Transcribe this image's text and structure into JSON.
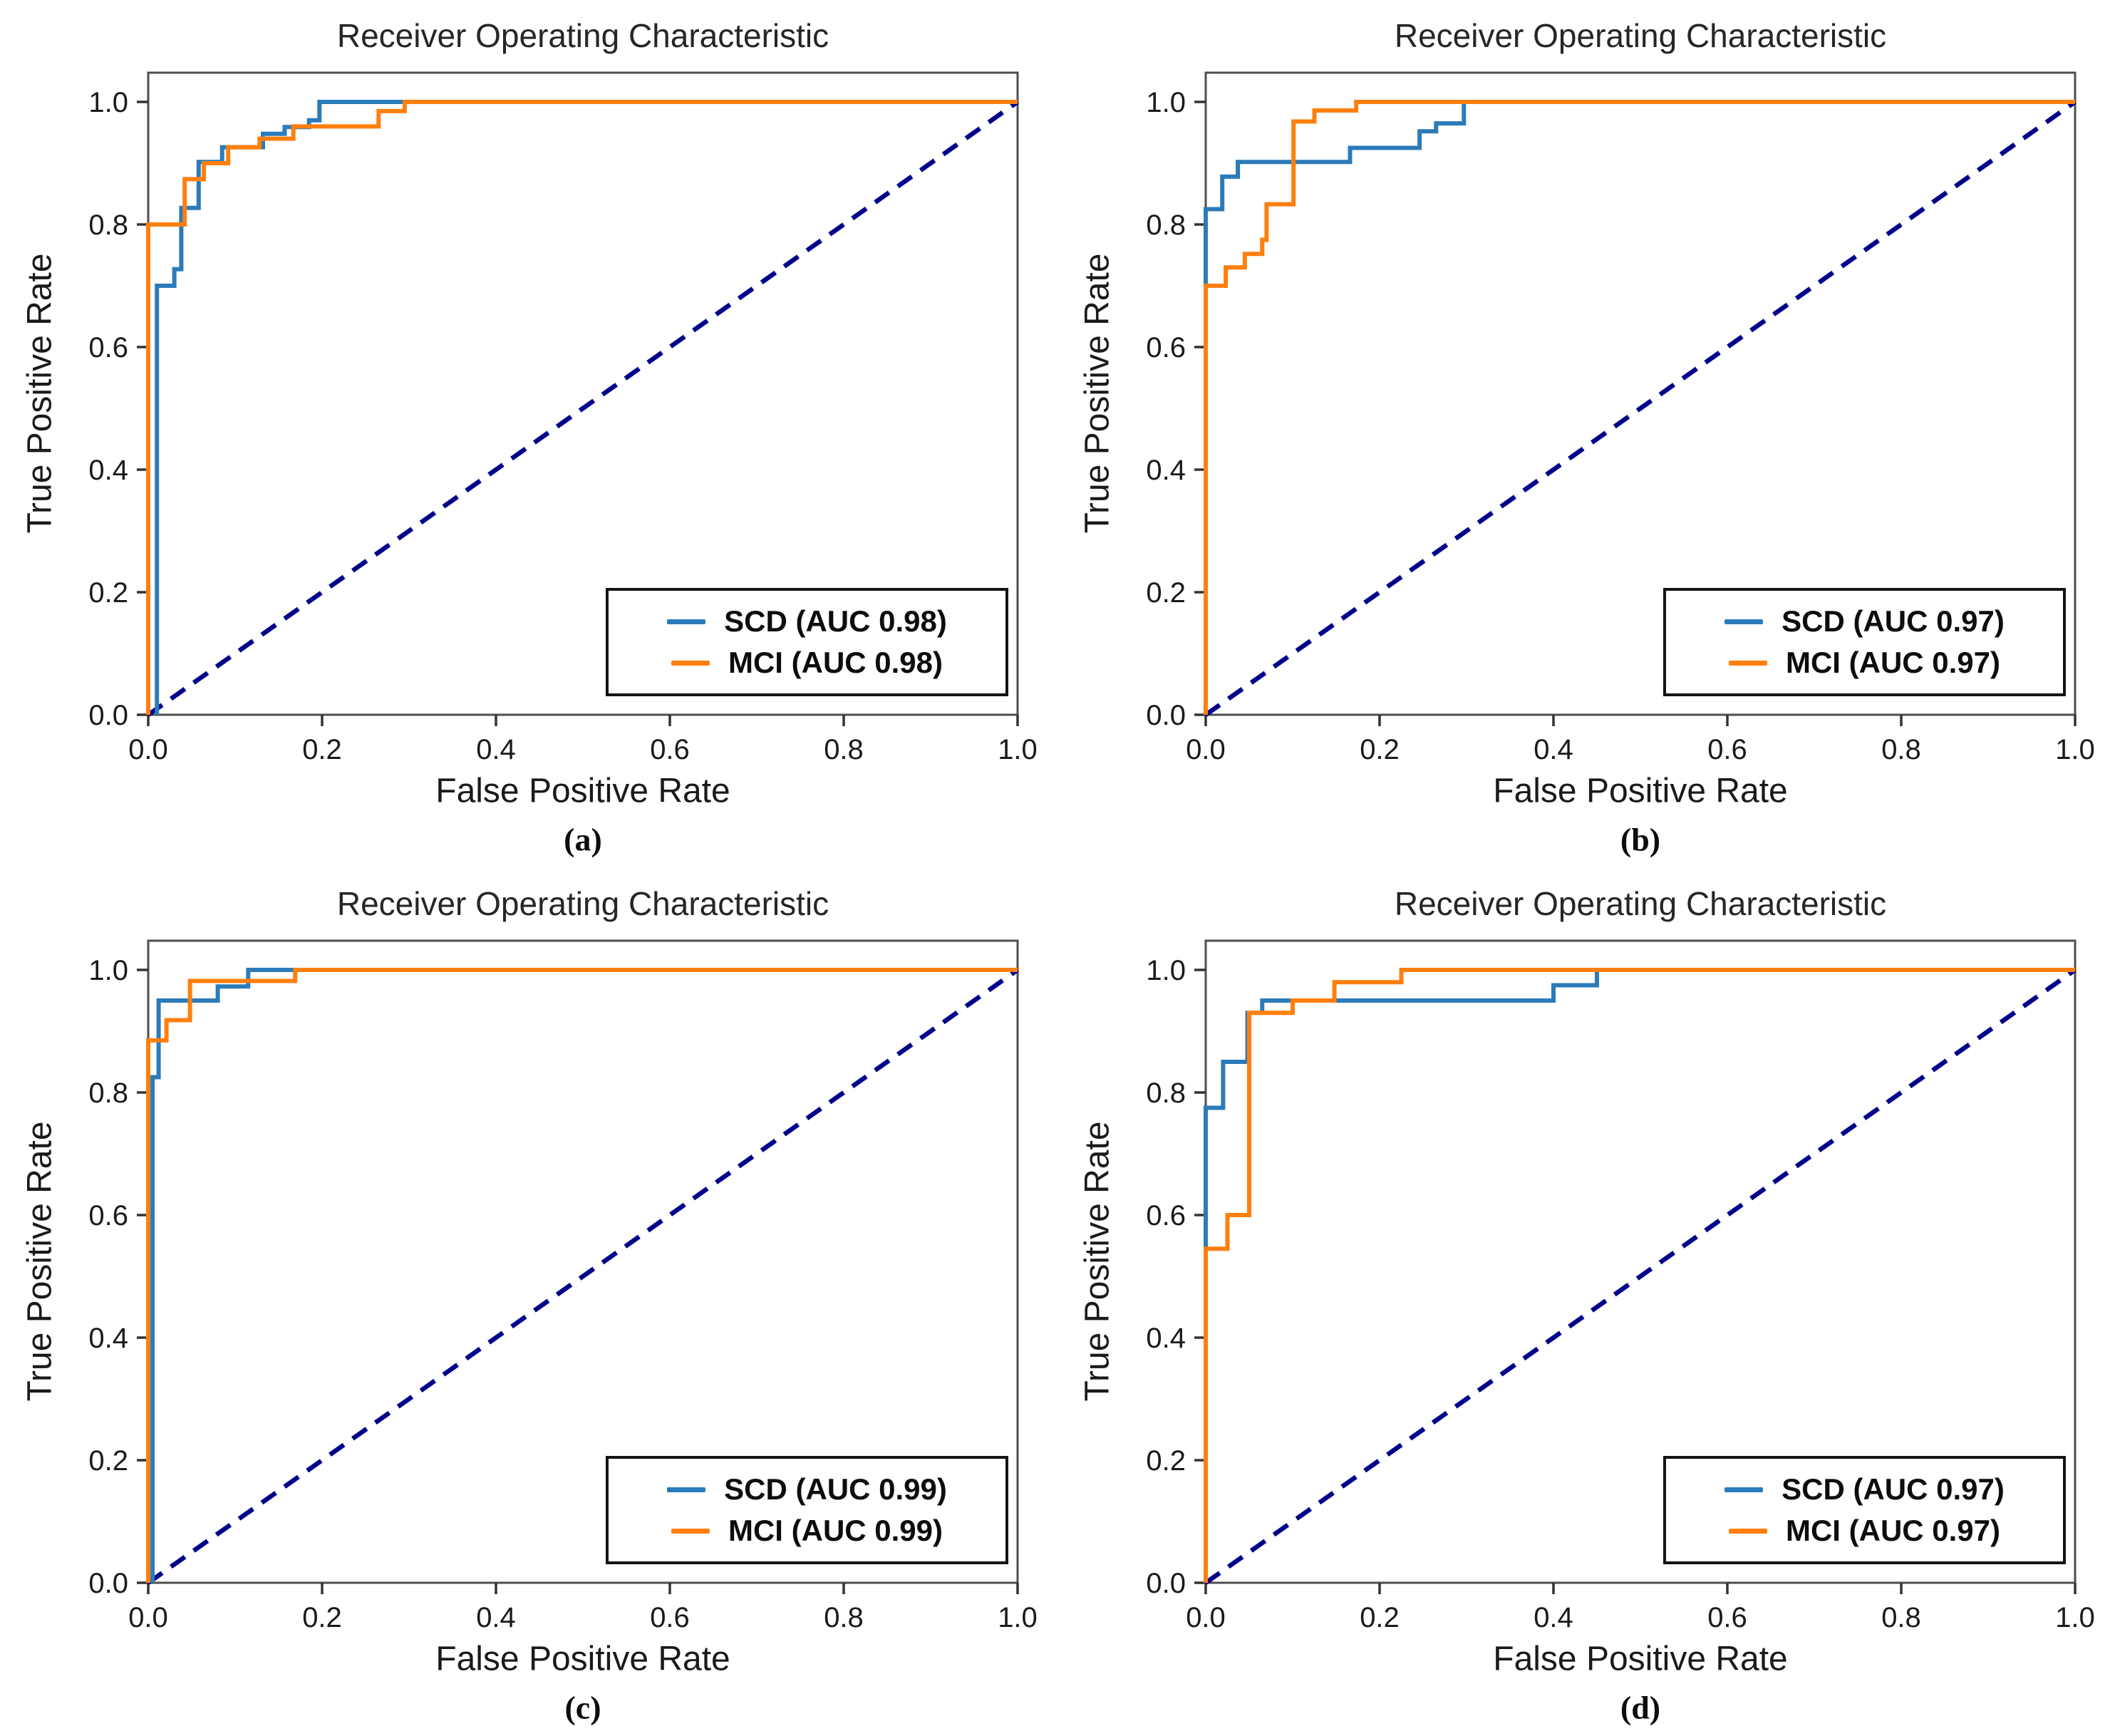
{
  "figure": {
    "layout": {
      "rows": 2,
      "cols": 2
    },
    "background": "#ffffff",
    "colors": {
      "scd_line": "#2b7bba",
      "mci_line": "#ff7f0e",
      "chance_diagonal": "#00008b",
      "spine": "#4d4d4d",
      "text": "#1a1a1a"
    }
  },
  "chart_data": [
    {
      "id": "a",
      "type": "line",
      "caption": "(a)",
      "title": "Receiver Operating Characteristic",
      "xlabel": "False Positive Rate",
      "ylabel": "True Positive Rate",
      "xlim": [
        0.0,
        1.0
      ],
      "ylim": [
        0.0,
        1.05
      ],
      "xticks": [
        0.0,
        0.2,
        0.4,
        0.6,
        0.8,
        1.0
      ],
      "yticks": [
        0.0,
        0.2,
        0.4,
        0.6,
        0.8,
        1.0
      ],
      "grid": false,
      "legend_position": "lower right",
      "reference_diagonal": {
        "style": "dashed",
        "color": "#00008b",
        "from": [
          0,
          0
        ],
        "to": [
          1,
          1
        ]
      },
      "series": [
        {
          "name": "SCD (AUC 0.98)",
          "label": "SCD",
          "auc": 0.98,
          "color": "#2b7bba",
          "points": [
            [
              0.01,
              0
            ],
            [
              0.01,
              0.7
            ],
            [
              0.03,
              0.7
            ],
            [
              0.03,
              0.727
            ],
            [
              0.038,
              0.727
            ],
            [
              0.038,
              0.827
            ],
            [
              0.058,
              0.827
            ],
            [
              0.058,
              0.902
            ],
            [
              0.085,
              0.902
            ],
            [
              0.085,
              0.926
            ],
            [
              0.132,
              0.926
            ],
            [
              0.132,
              0.948
            ],
            [
              0.157,
              0.948
            ],
            [
              0.157,
              0.959
            ],
            [
              0.185,
              0.959
            ],
            [
              0.185,
              0.97
            ],
            [
              0.197,
              0.97
            ],
            [
              0.197,
              1.0
            ],
            [
              1.0,
              1.0
            ]
          ]
        },
        {
          "name": "MCI (AUC 0.98)",
          "label": "MCI",
          "auc": 0.98,
          "color": "#ff7f0e",
          "points": [
            [
              0,
              0
            ],
            [
              0,
              0.8
            ],
            [
              0.042,
              0.8
            ],
            [
              0.042,
              0.874
            ],
            [
              0.064,
              0.874
            ],
            [
              0.064,
              0.9
            ],
            [
              0.092,
              0.9
            ],
            [
              0.092,
              0.926
            ],
            [
              0.128,
              0.926
            ],
            [
              0.128,
              0.94
            ],
            [
              0.167,
              0.94
            ],
            [
              0.167,
              0.96
            ],
            [
              0.265,
              0.96
            ],
            [
              0.265,
              0.985
            ],
            [
              0.295,
              0.985
            ],
            [
              0.295,
              1.0
            ],
            [
              1.0,
              1.0
            ]
          ]
        }
      ]
    },
    {
      "id": "b",
      "type": "line",
      "caption": "(b)",
      "title": "Receiver Operating Characteristic",
      "xlabel": "False Positive Rate",
      "ylabel": "True Positive Rate",
      "xlim": [
        0.0,
        1.0
      ],
      "ylim": [
        0.0,
        1.05
      ],
      "xticks": [
        0.0,
        0.2,
        0.4,
        0.6,
        0.8,
        1.0
      ],
      "yticks": [
        0.0,
        0.2,
        0.4,
        0.6,
        0.8,
        1.0
      ],
      "grid": false,
      "legend_position": "lower right",
      "reference_diagonal": {
        "style": "dashed",
        "color": "#00008b",
        "from": [
          0,
          0
        ],
        "to": [
          1,
          1
        ]
      },
      "series": [
        {
          "name": "SCD (AUC 0.97)",
          "label": "SCD",
          "auc": 0.97,
          "color": "#2b7bba",
          "points": [
            [
              0,
              0
            ],
            [
              0,
              0.825
            ],
            [
              0.019,
              0.825
            ],
            [
              0.019,
              0.878
            ],
            [
              0.037,
              0.878
            ],
            [
              0.037,
              0.902
            ],
            [
              0.166,
              0.902
            ],
            [
              0.166,
              0.925
            ],
            [
              0.246,
              0.925
            ],
            [
              0.246,
              0.952
            ],
            [
              0.265,
              0.952
            ],
            [
              0.265,
              0.965
            ],
            [
              0.297,
              0.965
            ],
            [
              0.297,
              1.0
            ],
            [
              1.0,
              1.0
            ]
          ]
        },
        {
          "name": "MCI (AUC 0.97)",
          "label": "MCI",
          "auc": 0.97,
          "color": "#ff7f0e",
          "points": [
            [
              0,
              0
            ],
            [
              0,
              0.7
            ],
            [
              0.023,
              0.7
            ],
            [
              0.023,
              0.73
            ],
            [
              0.045,
              0.73
            ],
            [
              0.045,
              0.752
            ],
            [
              0.065,
              0.752
            ],
            [
              0.065,
              0.775
            ],
            [
              0.07,
              0.775
            ],
            [
              0.07,
              0.833
            ],
            [
              0.101,
              0.833
            ],
            [
              0.101,
              0.968
            ],
            [
              0.125,
              0.968
            ],
            [
              0.125,
              0.986
            ],
            [
              0.173,
              0.986
            ],
            [
              0.173,
              1.0
            ],
            [
              1.0,
              1.0
            ]
          ]
        }
      ]
    },
    {
      "id": "c",
      "type": "line",
      "caption": "(c)",
      "title": "Receiver Operating Characteristic",
      "xlabel": "False Positive Rate",
      "ylabel": "True Positive Rate",
      "xlim": [
        0.0,
        1.0
      ],
      "ylim": [
        0.0,
        1.05
      ],
      "xticks": [
        0.0,
        0.2,
        0.4,
        0.6,
        0.8,
        1.0
      ],
      "yticks": [
        0.0,
        0.2,
        0.4,
        0.6,
        0.8,
        1.0
      ],
      "grid": false,
      "legend_position": "lower right",
      "reference_diagonal": {
        "style": "dashed",
        "color": "#00008b",
        "from": [
          0,
          0
        ],
        "to": [
          1,
          1
        ]
      },
      "series": [
        {
          "name": "SCD (AUC 0.99)",
          "label": "SCD",
          "auc": 0.99,
          "color": "#2b7bba",
          "points": [
            [
              0.005,
              0
            ],
            [
              0.005,
              0.825
            ],
            [
              0.012,
              0.825
            ],
            [
              0.012,
              0.95
            ],
            [
              0.08,
              0.95
            ],
            [
              0.08,
              0.973
            ],
            [
              0.115,
              0.973
            ],
            [
              0.115,
              1.0
            ],
            [
              1.0,
              1.0
            ]
          ]
        },
        {
          "name": "MCI (AUC 0.99)",
          "label": "MCI",
          "auc": 0.99,
          "color": "#ff7f0e",
          "points": [
            [
              0,
              0
            ],
            [
              0,
              0.885
            ],
            [
              0.021,
              0.885
            ],
            [
              0.021,
              0.918
            ],
            [
              0.048,
              0.918
            ],
            [
              0.048,
              0.982
            ],
            [
              0.169,
              0.982
            ],
            [
              0.169,
              1.0
            ],
            [
              1.0,
              1.0
            ]
          ]
        }
      ]
    },
    {
      "id": "d",
      "type": "line",
      "caption": "(d)",
      "title": "Receiver Operating Characteristic",
      "xlabel": "False Positive Rate",
      "ylabel": "True Positive Rate",
      "xlim": [
        0.0,
        1.0
      ],
      "ylim": [
        0.0,
        1.05
      ],
      "xticks": [
        0.0,
        0.2,
        0.4,
        0.6,
        0.8,
        1.0
      ],
      "yticks": [
        0.0,
        0.2,
        0.4,
        0.6,
        0.8,
        1.0
      ],
      "grid": false,
      "legend_position": "lower right",
      "reference_diagonal": {
        "style": "dashed",
        "color": "#00008b",
        "from": [
          0,
          0
        ],
        "to": [
          1,
          1
        ]
      },
      "series": [
        {
          "name": "SCD (AUC 0.97)",
          "label": "SCD",
          "auc": 0.97,
          "color": "#2b7bba",
          "points": [
            [
              0,
              0
            ],
            [
              0,
              0.775
            ],
            [
              0.02,
              0.775
            ],
            [
              0.02,
              0.85
            ],
            [
              0.048,
              0.85
            ],
            [
              0.048,
              0.93
            ],
            [
              0.065,
              0.93
            ],
            [
              0.065,
              0.95
            ],
            [
              0.4,
              0.95
            ],
            [
              0.4,
              0.975
            ],
            [
              0.45,
              0.975
            ],
            [
              0.45,
              1.0
            ],
            [
              1.0,
              1.0
            ]
          ]
        },
        {
          "name": "MCI (AUC 0.97)",
          "label": "MCI",
          "auc": 0.97,
          "color": "#ff7f0e",
          "points": [
            [
              0,
              0
            ],
            [
              0,
              0.545
            ],
            [
              0.025,
              0.545
            ],
            [
              0.025,
              0.6
            ],
            [
              0.05,
              0.6
            ],
            [
              0.05,
              0.93
            ],
            [
              0.1,
              0.93
            ],
            [
              0.1,
              0.95
            ],
            [
              0.148,
              0.95
            ],
            [
              0.148,
              0.98
            ],
            [
              0.225,
              0.98
            ],
            [
              0.225,
              1.0
            ],
            [
              1.0,
              1.0
            ]
          ]
        }
      ]
    }
  ]
}
